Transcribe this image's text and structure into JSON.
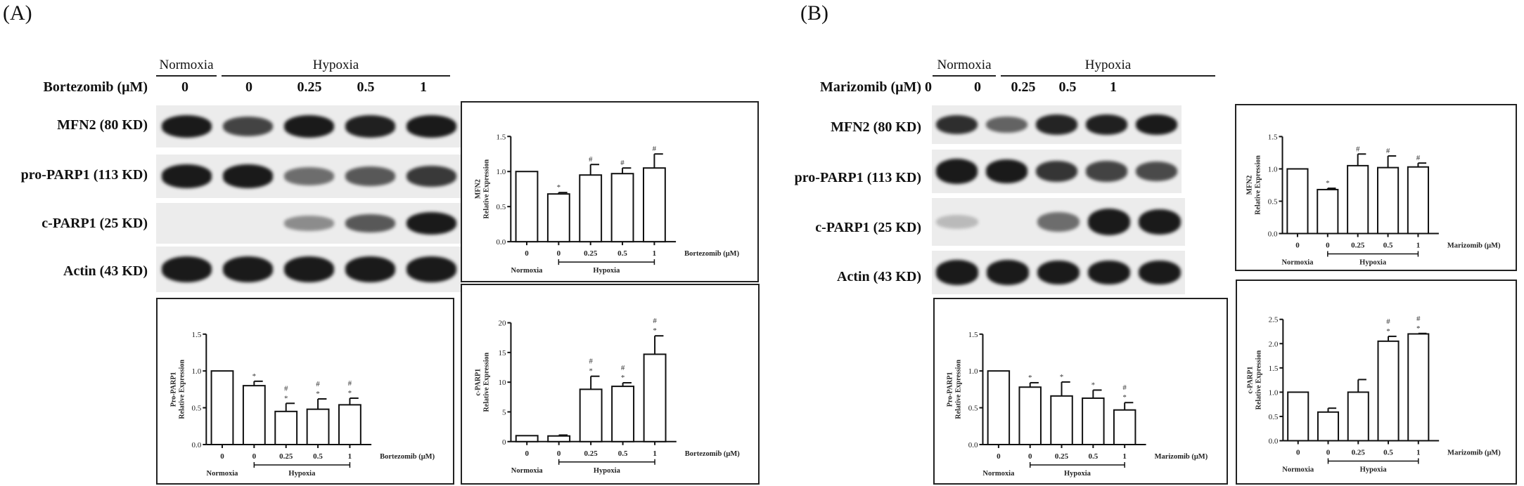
{
  "panels": [
    {
      "label": "(A)",
      "drug_label": "Bortezomib (μM)",
      "group_headers": {
        "normoxia": "Normoxia",
        "hypoxia": "Hypoxia"
      },
      "doses": [
        "0",
        "0",
        "0.25",
        "0.5",
        "1"
      ],
      "blot_rows": [
        {
          "label": "MFN2 (80 KD)",
          "intensity": [
            0.85,
            0.65,
            0.85,
            0.82,
            0.85
          ]
        },
        {
          "label": "pro-PARP1 (113 KD)",
          "intensity": [
            0.85,
            0.85,
            0.45,
            0.55,
            0.7
          ]
        },
        {
          "label": "c-PARP1 (25 KD)",
          "intensity": [
            0.0,
            0.0,
            0.3,
            0.55,
            0.95
          ]
        },
        {
          "label": "Actin (43 KD)",
          "intensity": [
            0.95,
            0.95,
            0.95,
            0.95,
            0.97
          ]
        }
      ]
    },
    {
      "label": "(B)",
      "drug_label": "Marizomib (μM)",
      "group_headers": {
        "normoxia": "Normoxia",
        "hypoxia": "Hypoxia"
      },
      "doses": [
        "0",
        "0",
        "0.25",
        "0.5",
        "1"
      ],
      "blot_rows": [
        {
          "label": "MFN2 (80 KD)",
          "intensity": [
            0.75,
            0.5,
            0.8,
            0.82,
            0.85
          ]
        },
        {
          "label": "pro-PARP1 (113 KD)",
          "intensity": [
            0.97,
            0.85,
            0.72,
            0.65,
            0.62
          ]
        },
        {
          "label": "c-PARP1 (25 KD)",
          "intensity": [
            0.08,
            0.0,
            0.45,
            0.95,
            0.85
          ]
        },
        {
          "label": "Actin (43 KD)",
          "intensity": [
            0.95,
            0.95,
            0.93,
            0.9,
            0.92
          ]
        }
      ]
    }
  ],
  "chart_data": [
    {
      "id": "A-MFN2",
      "type": "bar",
      "title": "",
      "ylabel": [
        "MFN2",
        "Relative Expression"
      ],
      "xlabel": "Bortezomib (μM)",
      "categories": [
        "0",
        "0",
        "0.25",
        "0.5",
        "1"
      ],
      "groups": {
        "normoxia": "Normoxia",
        "hypoxia": "Hypoxia"
      },
      "values": [
        1.0,
        0.68,
        0.95,
        0.97,
        1.05
      ],
      "errors": [
        0.0,
        0.02,
        0.15,
        0.08,
        0.2
      ],
      "annotations": [
        [],
        [
          "*"
        ],
        [
          "#"
        ],
        [
          "#"
        ],
        [
          "#"
        ]
      ],
      "ylim": [
        0,
        1.5
      ],
      "yticks": [
        "0.0",
        "0.5",
        "1.0",
        "1.5"
      ],
      "ytick_values": [
        0,
        0.5,
        1.0,
        1.5
      ]
    },
    {
      "id": "A-ProPARP1",
      "type": "bar",
      "title": "",
      "ylabel": [
        "Pro-PARP1",
        "Relative Expression"
      ],
      "xlabel": "Bortezomib (μM)",
      "categories": [
        "0",
        "0",
        "0.25",
        "0.5",
        "1"
      ],
      "groups": {
        "normoxia": "Normoxia",
        "hypoxia": "Hypoxia"
      },
      "values": [
        1.0,
        0.8,
        0.45,
        0.48,
        0.54
      ],
      "errors": [
        0.0,
        0.06,
        0.11,
        0.14,
        0.09
      ],
      "annotations": [
        [],
        [
          "*"
        ],
        [
          "#",
          "*"
        ],
        [
          "#",
          "*"
        ],
        [
          "#",
          "*"
        ]
      ],
      "ylim": [
        0,
        1.5
      ],
      "yticks": [
        "0.0",
        "0.5",
        "1.0",
        "1.5"
      ],
      "ytick_values": [
        0,
        0.5,
        1.0,
        1.5
      ]
    },
    {
      "id": "A-cPARP1",
      "type": "bar",
      "title": "",
      "ylabel": [
        "c-PARP1",
        "Relative Expression"
      ],
      "xlabel": "Bortezomib (μM)",
      "categories": [
        "0",
        "0",
        "0.25",
        "0.5",
        "1"
      ],
      "groups": {
        "normoxia": "Normoxia",
        "hypoxia": "Hypoxia"
      },
      "values": [
        1.0,
        0.95,
        8.8,
        9.3,
        14.7
      ],
      "errors": [
        0.0,
        0.15,
        2.2,
        0.6,
        3.1
      ],
      "annotations": [
        [],
        [],
        [
          "#",
          "*"
        ],
        [
          "#",
          "*"
        ],
        [
          "#",
          "*"
        ]
      ],
      "ylim": [
        0,
        20
      ],
      "yticks": [
        "0",
        "5",
        "10",
        "15",
        "20"
      ],
      "ytick_values": [
        0,
        5,
        10,
        15,
        20
      ]
    },
    {
      "id": "B-MFN2",
      "type": "bar",
      "title": "",
      "ylabel": [
        "MFN2",
        "Relative Expression"
      ],
      "xlabel": "Marizomib (μM)",
      "categories": [
        "0",
        "0",
        "0.25",
        "0.5",
        "1"
      ],
      "groups": {
        "normoxia": "Normoxia",
        "hypoxia": "Hypoxia"
      },
      "values": [
        1.0,
        0.68,
        1.05,
        1.02,
        1.03
      ],
      "errors": [
        0.0,
        0.02,
        0.18,
        0.18,
        0.06
      ],
      "annotations": [
        [],
        [
          "*"
        ],
        [
          "#"
        ],
        [
          "#"
        ],
        [
          "#"
        ]
      ],
      "ylim": [
        0,
        1.5
      ],
      "yticks": [
        "0.0",
        "0.5",
        "1.0",
        "1.5"
      ],
      "ytick_values": [
        0,
        0.5,
        1.0,
        1.5
      ]
    },
    {
      "id": "B-ProPARP1",
      "type": "bar",
      "title": "",
      "ylabel": [
        "Pro-PARP1",
        "Relative Expression"
      ],
      "xlabel": "Marizomib (μM)",
      "categories": [
        "0",
        "0",
        "0.25",
        "0.5",
        "1"
      ],
      "groups": {
        "normoxia": "Normoxia",
        "hypoxia": "Hypoxia"
      },
      "values": [
        1.0,
        0.78,
        0.66,
        0.63,
        0.47
      ],
      "errors": [
        0.0,
        0.06,
        0.19,
        0.11,
        0.1
      ],
      "annotations": [
        [],
        [
          "*"
        ],
        [
          "*"
        ],
        [
          "*"
        ],
        [
          "#",
          "*"
        ]
      ],
      "ylim": [
        0,
        1.5
      ],
      "yticks": [
        "0.0",
        "0.5",
        "1.0",
        "1.5"
      ],
      "ytick_values": [
        0,
        0.5,
        1.0,
        1.5
      ]
    },
    {
      "id": "B-cPARP1",
      "type": "bar",
      "title": "",
      "ylabel": [
        "c-PARP1",
        "Relative Expression"
      ],
      "xlabel": "Marizomib (μM)",
      "categories": [
        "0",
        "0",
        "0.25",
        "0.5",
        "1"
      ],
      "groups": {
        "normoxia": "Normoxia",
        "hypoxia": "Hypoxia"
      },
      "values": [
        1.0,
        0.59,
        1.0,
        2.05,
        2.2
      ],
      "errors": [
        0.0,
        0.08,
        0.26,
        0.1,
        0.01
      ],
      "annotations": [
        [],
        [],
        [],
        [
          "#",
          "*"
        ],
        [
          "#",
          "*"
        ]
      ],
      "ylim": [
        0,
        2.5
      ],
      "yticks": [
        "0.0",
        "0.5",
        "1.0",
        "1.5",
        "2.0",
        "2.5"
      ],
      "ytick_values": [
        0,
        0.5,
        1.0,
        1.5,
        2.0,
        2.5
      ]
    }
  ]
}
